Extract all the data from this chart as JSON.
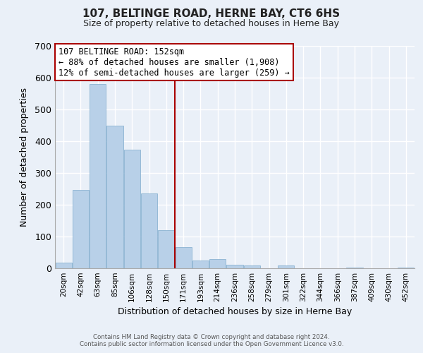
{
  "title": "107, BELTINGE ROAD, HERNE BAY, CT6 6HS",
  "subtitle": "Size of property relative to detached houses in Herne Bay",
  "xlabel": "Distribution of detached houses by size in Herne Bay",
  "ylabel": "Number of detached properties",
  "bar_labels": [
    "20sqm",
    "42sqm",
    "63sqm",
    "85sqm",
    "106sqm",
    "128sqm",
    "150sqm",
    "171sqm",
    "193sqm",
    "214sqm",
    "236sqm",
    "258sqm",
    "279sqm",
    "301sqm",
    "322sqm",
    "344sqm",
    "366sqm",
    "387sqm",
    "409sqm",
    "430sqm",
    "452sqm"
  ],
  "bar_values": [
    18,
    247,
    581,
    449,
    374,
    236,
    120,
    67,
    24,
    30,
    12,
    10,
    0,
    8,
    0,
    0,
    0,
    3,
    0,
    0,
    3
  ],
  "bar_color": "#b8d0e8",
  "bar_edge_color": "#7eaacc",
  "ylim": [
    0,
    700
  ],
  "yticks": [
    0,
    100,
    200,
    300,
    400,
    500,
    600,
    700
  ],
  "annotation_title": "107 BELTINGE ROAD: 152sqm",
  "annotation_line1": "← 88% of detached houses are smaller (1,908)",
  "annotation_line2": "12% of semi-detached houses are larger (259) →",
  "annotation_box_facecolor": "#ffffff",
  "annotation_box_edgecolor": "#aa0000",
  "footer_line1": "Contains HM Land Registry data © Crown copyright and database right 2024.",
  "footer_line2": "Contains public sector information licensed under the Open Government Licence v3.0.",
  "background_color": "#eaf0f8",
  "plot_background": "#eaf0f8",
  "grid_color": "#ffffff",
  "vline_color": "#aa0000",
  "vline_x_index": 6
}
